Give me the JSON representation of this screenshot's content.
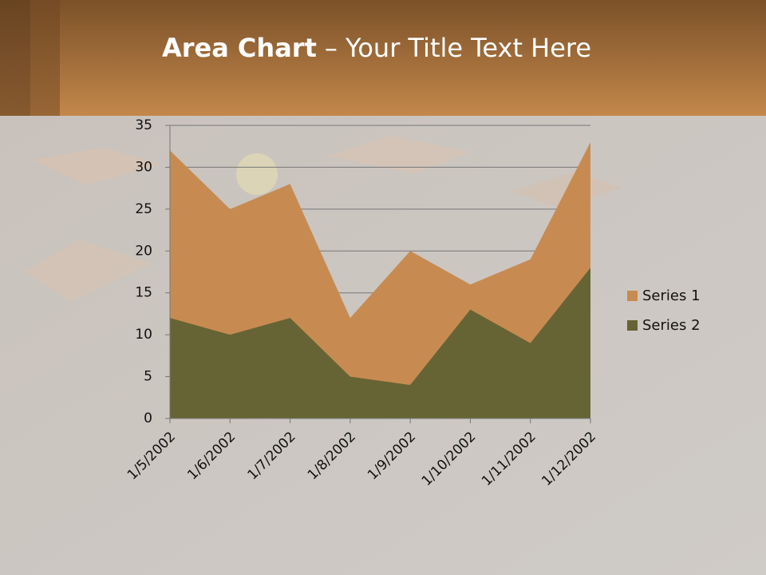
{
  "chart_data": {
    "type": "area",
    "title": [
      "Area Chart",
      "– Your Title Text Here"
    ],
    "categories": [
      "1/5/2002",
      "1/6/2002",
      "1/7/2002",
      "1/8/2002",
      "1/9/2002",
      "1/10/2002",
      "1/11/2002",
      "1/12/2002"
    ],
    "series": [
      {
        "name": "Series 1",
        "color": "#c78b51",
        "values": [
          32,
          25,
          28,
          12,
          20,
          16,
          19,
          33
        ]
      },
      {
        "name": "Series 2",
        "color": "#666434",
        "values": [
          12,
          10,
          12,
          5,
          4,
          13,
          9,
          18
        ]
      }
    ],
    "ylim": [
      0,
      35
    ],
    "yticks": [
      0,
      5,
      10,
      15,
      20,
      25,
      30,
      35
    ],
    "grid": true,
    "legend": "right"
  }
}
